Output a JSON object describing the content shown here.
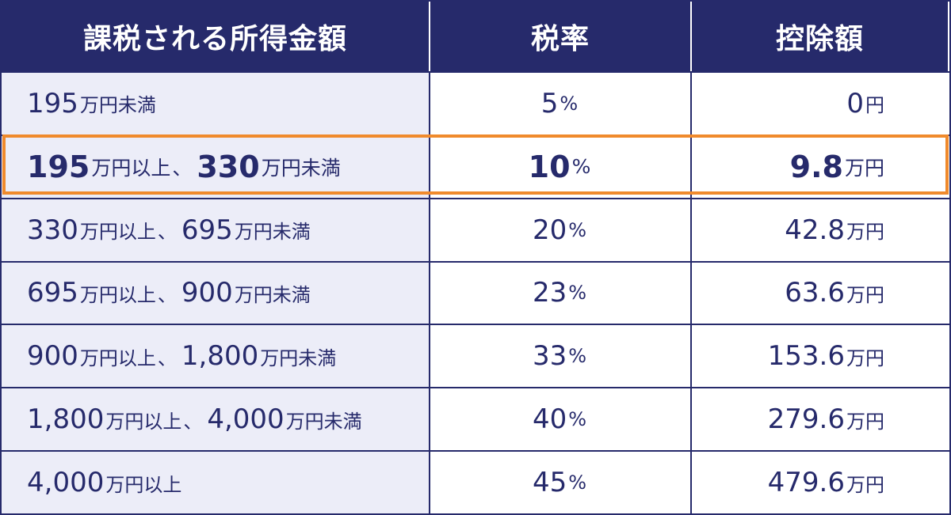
{
  "headers": {
    "income": "課税される所得金額",
    "rate": "税率",
    "deduction": "控除額"
  },
  "rows": [
    {
      "from": "195",
      "from_unit": "万円未満",
      "sep": "",
      "to": "",
      "to_unit": "",
      "rate": "5",
      "rate_unit": "%",
      "deduction": "0",
      "deduction_unit": "円"
    },
    {
      "from": "195",
      "from_unit": "万円以上",
      "sep": "、",
      "to": "330",
      "to_unit": "万円未満",
      "rate": "10",
      "rate_unit": "%",
      "deduction": "9.8",
      "deduction_unit": "万円"
    },
    {
      "from": "330",
      "from_unit": "万円以上",
      "sep": "、",
      "to": "695",
      "to_unit": "万円未満",
      "rate": "20",
      "rate_unit": "%",
      "deduction": "42.8",
      "deduction_unit": "万円"
    },
    {
      "from": "695",
      "from_unit": "万円以上",
      "sep": "、",
      "to": "900",
      "to_unit": "万円未満",
      "rate": "23",
      "rate_unit": "%",
      "deduction": "63.6",
      "deduction_unit": "万円"
    },
    {
      "from": "900",
      "from_unit": "万円以上",
      "sep": "、",
      "to": "1,800",
      "to_unit": "万円未満",
      "rate": "33",
      "rate_unit": "%",
      "deduction": "153.6",
      "deduction_unit": "万円"
    },
    {
      "from": "1,800",
      "from_unit": "万円以上",
      "sep": "、",
      "to": "4,000",
      "to_unit": "万円未満",
      "rate": "40",
      "rate_unit": "%",
      "deduction": "279.6",
      "deduction_unit": "万円"
    },
    {
      "from": "4,000",
      "from_unit": "万円以上",
      "sep": "",
      "to": "",
      "to_unit": "",
      "rate": "45",
      "rate_unit": "%",
      "deduction": "479.6",
      "deduction_unit": "万円"
    }
  ],
  "highlighted_row": 1,
  "colors": {
    "header_bg": "#262a6b",
    "text": "#262a6b",
    "first_col_bg": "#ecedf8",
    "highlight": "#f08a2c"
  }
}
